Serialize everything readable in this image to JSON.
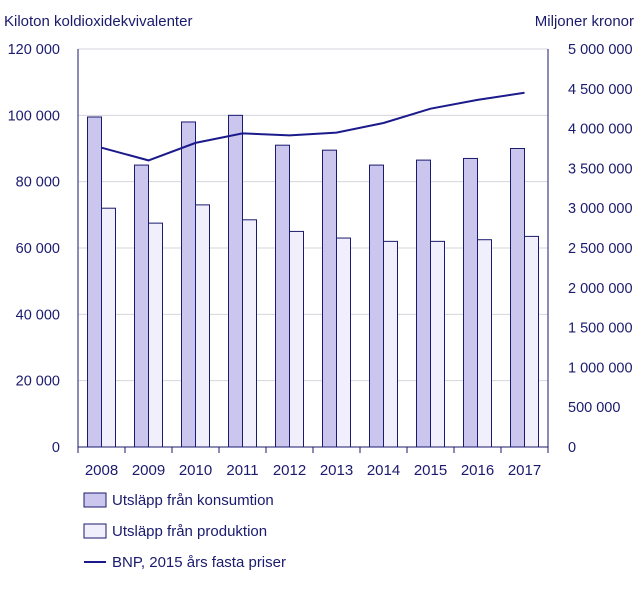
{
  "chart_data": {
    "type": "bar",
    "categories": [
      "2008",
      "2009",
      "2010",
      "2011",
      "2012",
      "2013",
      "2014",
      "2015",
      "2016",
      "2017"
    ],
    "ylabel_left": "Kiloton koldioxidekvivalenter",
    "ylabel_right": "Miljoner kronor",
    "ylim_left": [
      0,
      120000
    ],
    "ylim_right": [
      0,
      5000000
    ],
    "yticks_left": [
      "0",
      "20 000",
      "40 000",
      "60 000",
      "80 000",
      "100 000",
      "120 000"
    ],
    "yticks_right": [
      "0",
      "500 000",
      "1 000 000",
      "1 500 000",
      "2 000 000",
      "2 500 000",
      "3 000 000",
      "3 500 000",
      "4 000 000",
      "4 500 000",
      "5 000 000"
    ],
    "grid": true,
    "legend_position": "bottom-left",
    "series": [
      {
        "name": "Utsläpp från konsumtion",
        "type": "bar",
        "axis": "left",
        "color": "#cbc6ee",
        "values": [
          99500,
          85000,
          98000,
          100000,
          91000,
          89500,
          85000,
          86500,
          87000,
          90000
        ]
      },
      {
        "name": "Utsläpp från produktion",
        "type": "bar",
        "axis": "left",
        "color": "#f1effb",
        "values": [
          72000,
          67500,
          73000,
          68500,
          65000,
          63000,
          62000,
          62000,
          62500,
          63500
        ]
      },
      {
        "name": "BNP, 2015 års fasta priser",
        "type": "line",
        "axis": "right",
        "color": "#1a1a8c",
        "values": [
          3760000,
          3600000,
          3820000,
          3940000,
          3915000,
          3950000,
          4070000,
          4250000,
          4360000,
          4450000
        ]
      }
    ]
  }
}
